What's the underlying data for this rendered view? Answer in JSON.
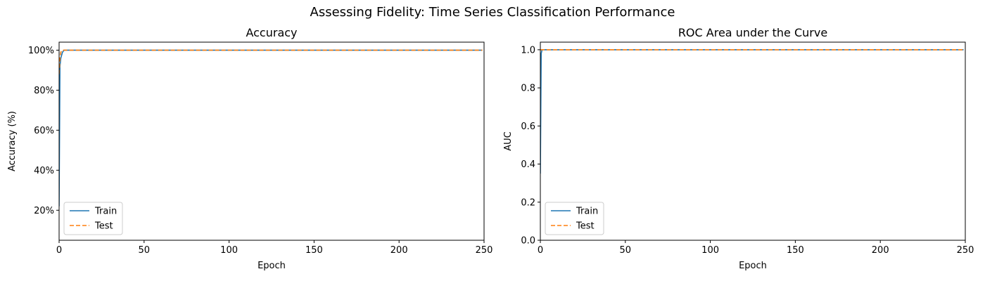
{
  "figure": {
    "suptitle": "Assessing Fidelity: Time Series Classification Performance"
  },
  "colors": {
    "train": "#1f77b4",
    "test": "#ff7f0e",
    "axes": "#000000",
    "legend_edge": "#cccccc"
  },
  "chart_data": [
    {
      "type": "line",
      "title": "Accuracy",
      "xlabel": "Epoch",
      "ylabel": "Accuracy (%)",
      "xlim": [
        0,
        250
      ],
      "ylim": [
        5,
        104
      ],
      "xticks": [
        0,
        50,
        100,
        150,
        200,
        250
      ],
      "xtick_labels": [
        "0",
        "50",
        "100",
        "150",
        "200",
        "250"
      ],
      "yticks": [
        20,
        40,
        60,
        80,
        100
      ],
      "ytick_labels": [
        "20%",
        "40%",
        "60%",
        "80%",
        "100%"
      ],
      "grid": false,
      "legend": "lower-left",
      "series": [
        {
          "name": "Train",
          "style": "solid",
          "color": "#1f77b4",
          "x": [
            0,
            0.5,
            1,
            2,
            3,
            5,
            10,
            50,
            100,
            150,
            200,
            249
          ],
          "y": [
            22,
            92,
            96,
            99,
            100,
            100,
            100,
            100,
            100,
            100,
            100,
            100
          ]
        },
        {
          "name": "Test",
          "style": "dashed",
          "color": "#ff7f0e",
          "x": [
            0,
            0.5,
            1,
            2,
            3,
            5,
            10,
            50,
            100,
            150,
            200,
            249
          ],
          "y": [
            88,
            96,
            99,
            100,
            100,
            100,
            100,
            100,
            100,
            100,
            100,
            100
          ]
        }
      ]
    },
    {
      "type": "line",
      "title": "ROC Area under the Curve",
      "xlabel": "Epoch",
      "ylabel": "AUC",
      "xlim": [
        0,
        250
      ],
      "ylim": [
        0,
        1.04
      ],
      "xticks": [
        0,
        50,
        100,
        150,
        200,
        250
      ],
      "xtick_labels": [
        "0",
        "50",
        "100",
        "150",
        "200",
        "250"
      ],
      "yticks": [
        0,
        0.2,
        0.4,
        0.6,
        0.8,
        1.0
      ],
      "ytick_labels": [
        "0.0",
        "0.2",
        "0.4",
        "0.6",
        "0.8",
        "1.0"
      ],
      "grid": false,
      "legend": "lower-left",
      "series": [
        {
          "name": "Train",
          "style": "solid",
          "color": "#1f77b4",
          "x": [
            0,
            0.5,
            1,
            2,
            3,
            5,
            10,
            50,
            100,
            150,
            200,
            249
          ],
          "y": [
            0.35,
            0.98,
            1.0,
            1.0,
            1.0,
            1.0,
            1.0,
            1.0,
            1.0,
            1.0,
            1.0,
            1.0
          ]
        },
        {
          "name": "Test",
          "style": "dashed",
          "color": "#ff7f0e",
          "x": [
            0,
            0.5,
            1,
            2,
            3,
            5,
            10,
            50,
            100,
            150,
            200,
            249
          ],
          "y": [
            1.0,
            1.0,
            1.0,
            1.0,
            1.0,
            1.0,
            1.0,
            1.0,
            1.0,
            1.0,
            1.0,
            1.0
          ]
        }
      ]
    }
  ]
}
